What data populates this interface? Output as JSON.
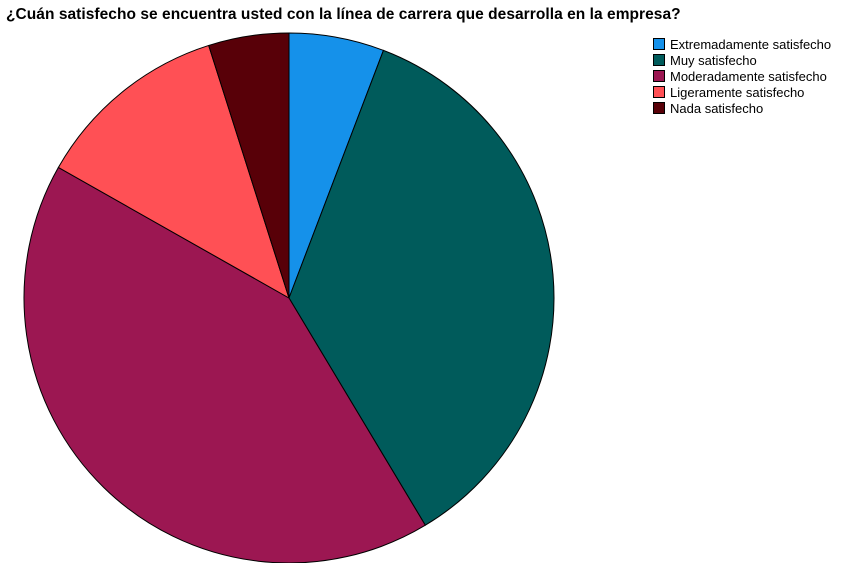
{
  "chart_data": {
    "type": "pie",
    "title": "¿Cuán satisfecho se encuentra usted con la línea de carrera que desarrolla en la empresa?",
    "legend_position": "top-right",
    "start_angle_deg": 0,
    "direction": "clockwise",
    "slices": [
      {
        "label": "Extremadamente satisfecho",
        "value": 5.8,
        "color": "#1591EA"
      },
      {
        "label": "Muy satisfecho",
        "value": 35.6,
        "color": "#005B5B"
      },
      {
        "label": "Moderadamente satisfecho",
        "value": 41.8,
        "color": "#9C1752"
      },
      {
        "label": "Ligeramente satisfecho",
        "value": 11.9,
        "color": "#FF5055"
      },
      {
        "label": "Nada satisfecho",
        "value": 4.9,
        "color": "#580008"
      }
    ]
  }
}
